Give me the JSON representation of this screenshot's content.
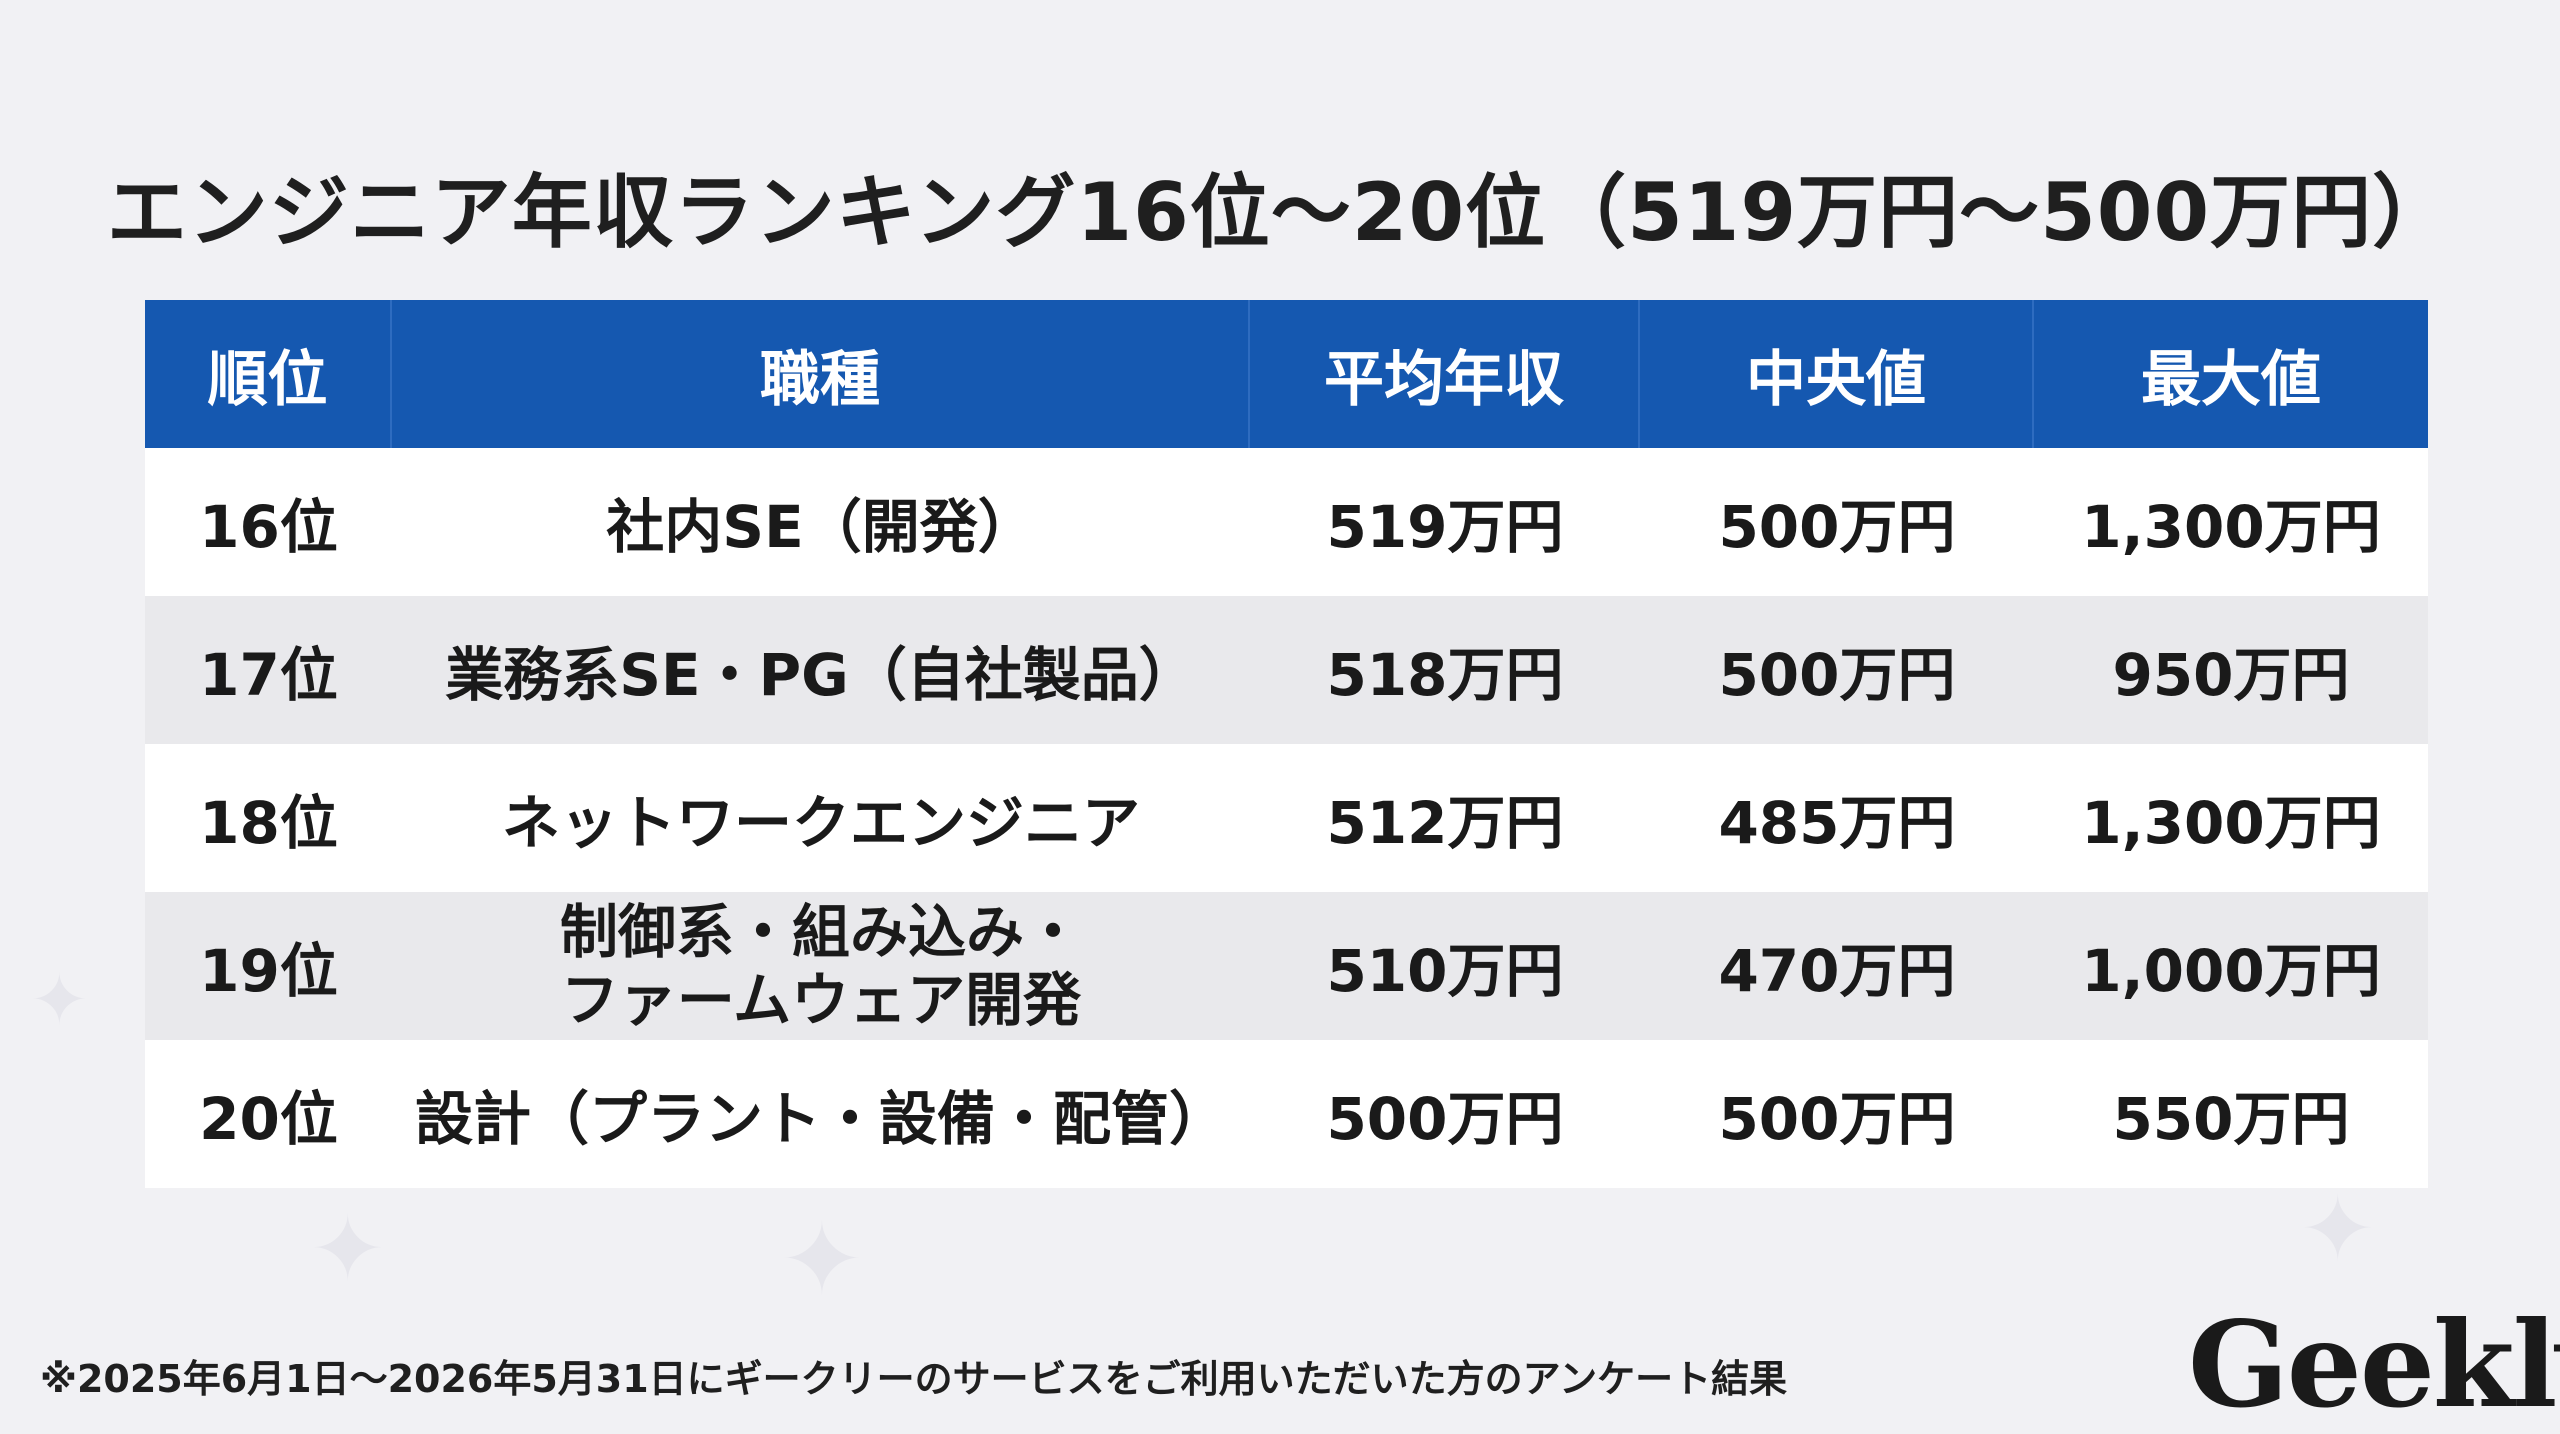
{
  "title": "エンジニア年収ランキング16位〜20位（519万円〜500万円）",
  "table": {
    "headers": [
      "順位",
      "職種",
      "平均年収",
      "中央値",
      "最大値"
    ],
    "rows": [
      {
        "rank": "16位",
        "job": [
          "社内SE（開発）"
        ],
        "average": "519万円",
        "median": "500万円",
        "max": "1,300万円"
      },
      {
        "rank": "17位",
        "job": [
          "業務系SE・PG（自社製品）"
        ],
        "average": "518万円",
        "median": "500万円",
        "max": "950万円"
      },
      {
        "rank": "18位",
        "job": [
          "ネットワークエンジニア"
        ],
        "average": "512万円",
        "median": "485万円",
        "max": "1,300万円"
      },
      {
        "rank": "19位",
        "job": [
          "制御系・組み込み・",
          "ファームウェア開発"
        ],
        "average": "510万円",
        "median": "470万円",
        "max": "1,000万円"
      },
      {
        "rank": "20位",
        "job": [
          "設計（プラント・設備・配管）"
        ],
        "average": "500万円",
        "median": "500万円",
        "max": "550万円"
      }
    ]
  },
  "footnote": "※2025年6月1日〜2026年5月31日にギークリーのサービスをご利用いただいた方のアンケート結果",
  "logo": "Geekly"
}
